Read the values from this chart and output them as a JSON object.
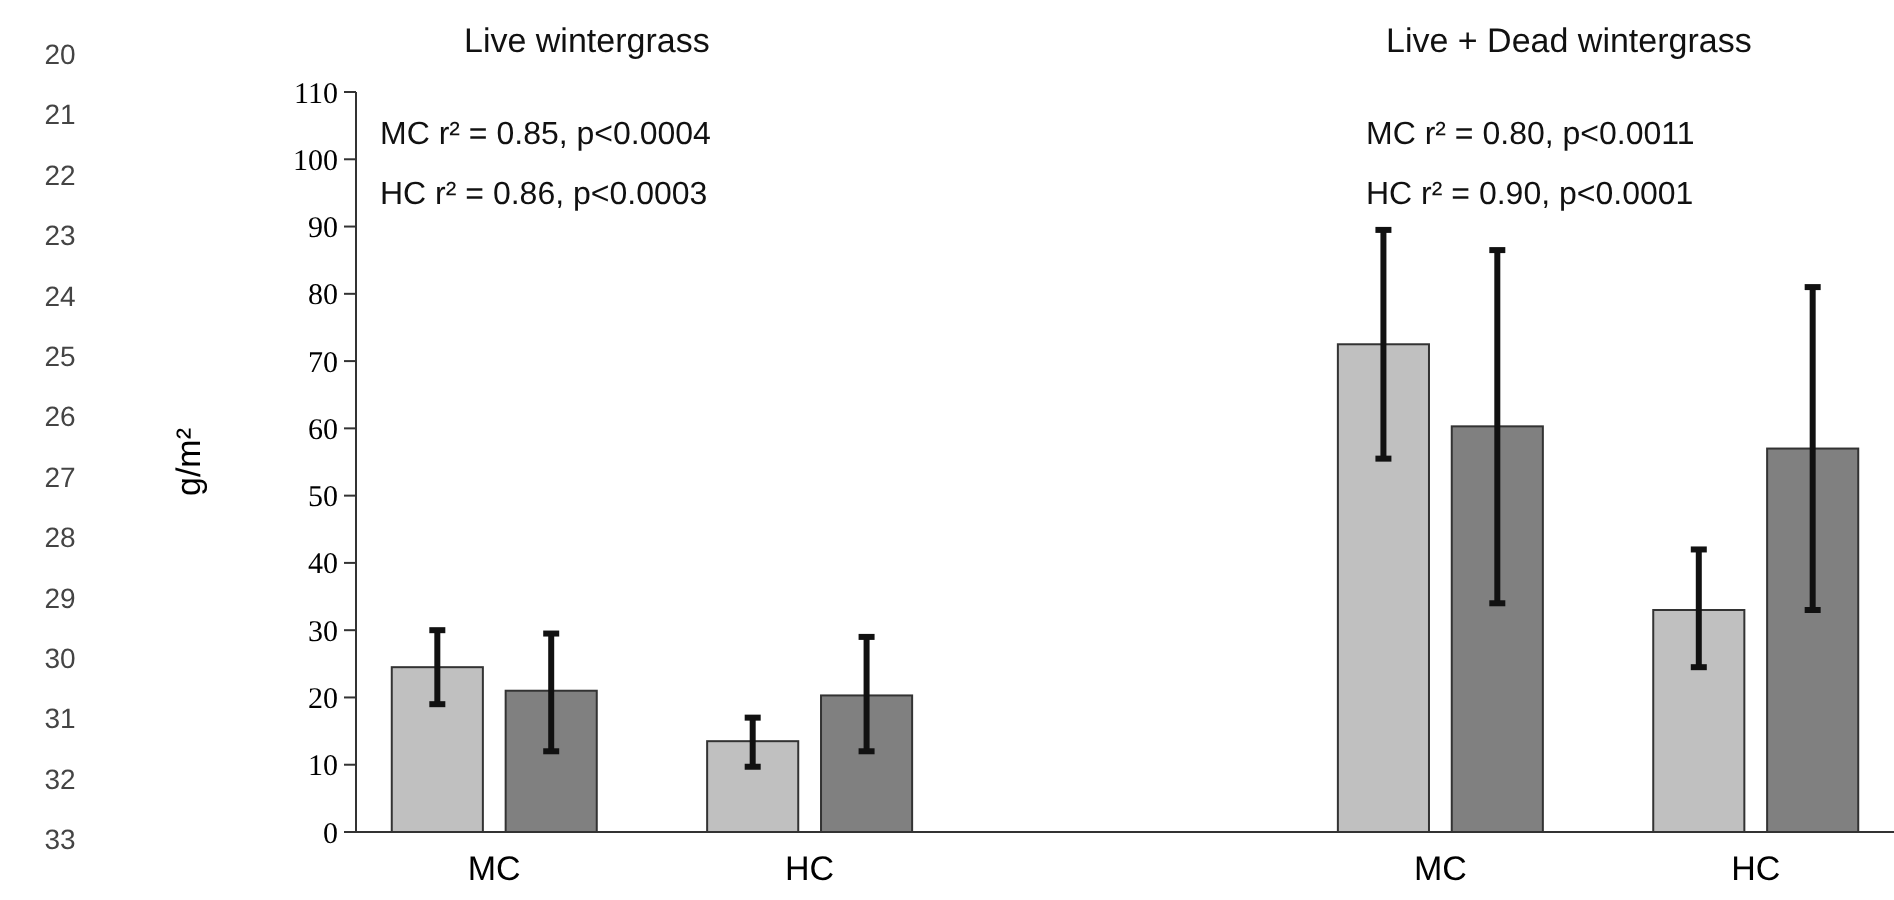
{
  "chart_data": {
    "type": "bar",
    "ylabel": "g/m²",
    "categories": [
      "MC",
      "HC",
      null,
      "MC",
      "HC"
    ],
    "series": [
      {
        "color": "#c0c0c0",
        "values": [
          24.5,
          13.5,
          null,
          72.5,
          33
        ],
        "errors": [
          [
            19,
            30
          ],
          [
            9.7,
            17
          ],
          null,
          [
            55.5,
            89.5
          ],
          [
            24.5,
            42
          ]
        ]
      },
      {
        "color": "#808080",
        "values": [
          21,
          20.3,
          null,
          60.3,
          57
        ],
        "errors": [
          [
            12,
            29.5
          ],
          [
            12,
            29
          ],
          null,
          [
            34,
            86.5
          ],
          [
            33,
            81
          ]
        ]
      }
    ],
    "ylim": [
      0,
      110
    ],
    "yticks": [
      0,
      10,
      20,
      30,
      40,
      50,
      60,
      70,
      80,
      90,
      100,
      110
    ],
    "grid": false,
    "annotations": [
      "Live   wintergrass",
      "Live + Dead   wintergrass",
      "MC   r² = 0.85, p<0.0004",
      "HC   r² = 0.86, p<0.0003",
      "MC   r² = 0.80, p<0.0011",
      "HC   r² = 0.90, p<0.0001",
      "20",
      "21",
      "22",
      "23",
      "24",
      "25",
      "26",
      "27",
      "28",
      "29",
      "30",
      "31",
      "32",
      "33"
    ]
  }
}
